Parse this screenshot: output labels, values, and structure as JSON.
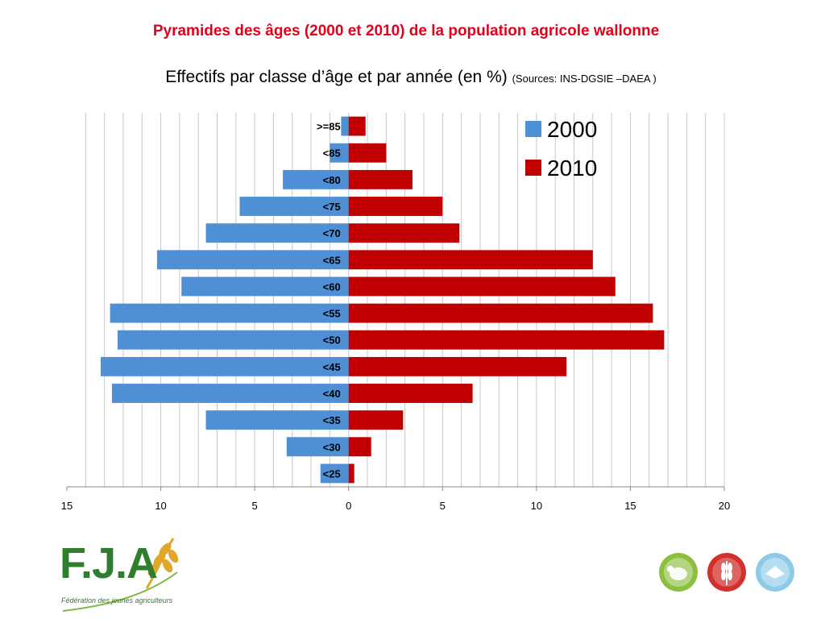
{
  "header": {
    "title": "Pyramides des âges (2000 et 2010) de la population agricole wallonne",
    "subtitle": "Effectifs par classe d’âge et par année (en %)",
    "source": "(Sources: INS-DGSIE –DAEA )"
  },
  "chart_data": {
    "type": "bar",
    "orientation": "horizontal-pyramid",
    "categories": [
      ">=85",
      "<85",
      "<80",
      "<75",
      "<70",
      "<65",
      "<60",
      "<55",
      "<50",
      "<45",
      "<40",
      "<35",
      "<30",
      "<25"
    ],
    "series": [
      {
        "name": "2000",
        "color": "#4f8fd6",
        "side": "left",
        "values": [
          0.4,
          1.0,
          3.5,
          5.8,
          7.6,
          10.2,
          8.9,
          12.7,
          12.3,
          13.2,
          12.6,
          7.6,
          3.3,
          1.5
        ]
      },
      {
        "name": "2010",
        "color": "#c00000",
        "side": "right",
        "values": [
          0.9,
          2.0,
          3.4,
          5.0,
          5.9,
          13.0,
          14.2,
          16.2,
          16.8,
          11.6,
          6.6,
          2.9,
          1.2,
          0.3
        ]
      }
    ],
    "xlim": [
      -15,
      20
    ],
    "xticks": [
      -15,
      -10,
      -5,
      0,
      5,
      10,
      15,
      20
    ],
    "xticklabels": [
      "15",
      "10",
      "5",
      "0",
      "5",
      "10",
      "15",
      "20"
    ],
    "grid": true,
    "legend": "top-right"
  },
  "footer": {
    "logo_text": "F.J.A",
    "logo_tagline": "Fédération des jeunes agriculteurs",
    "badges": [
      {
        "name": "sheep-badge-icon",
        "color": "#8dbf3f"
      },
      {
        "name": "wheat-badge-icon",
        "color": "#d0312d"
      },
      {
        "name": "cow-badge-icon",
        "color": "#8ec9e8"
      }
    ]
  }
}
